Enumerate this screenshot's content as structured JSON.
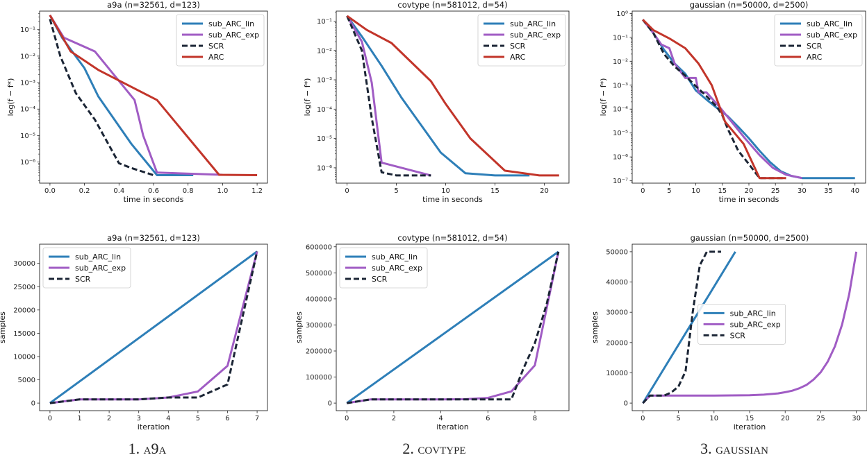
{
  "captions": [
    {
      "num": "1.",
      "name": "a9a"
    },
    {
      "num": "2.",
      "name": "covtype"
    },
    {
      "num": "3.",
      "name": "gaussian"
    }
  ],
  "colors": {
    "sub_ARC_lin": "#2e7fb8",
    "sub_ARC_exp": "#a05cc4",
    "SCR": "#1b2535",
    "ARC": "#c2352a"
  },
  "chart_data": [
    {
      "type": "line",
      "title": "a9a (n=32561, d=123)",
      "xlabel": "time in seconds",
      "ylabel": "log(f − f*)",
      "yscale": "log",
      "xlim": [
        -0.06,
        1.26
      ],
      "ylim": [
        1.6e-07,
        0.5
      ],
      "xticks": [
        0.0,
        0.2,
        0.4,
        0.6,
        0.8,
        1.0,
        1.2
      ],
      "xticklabels": [
        "0.0",
        "0.2",
        "0.4",
        "0.6",
        "0.8",
        "1.0",
        "1.2"
      ],
      "yticks": [
        1e-06,
        1e-05,
        0.0001,
        0.001,
        0.01,
        0.1
      ],
      "yticklabels": [
        "10⁻⁶",
        "10⁻⁵",
        "10⁻⁴",
        "10⁻³",
        "10⁻²",
        "10⁻¹"
      ],
      "legend": "top-right",
      "series": [
        {
          "name": "sub_ARC_lin",
          "style": "solid",
          "x": [
            0.0,
            0.07,
            0.2,
            0.28,
            0.47,
            0.62,
            0.83
          ],
          "y": [
            0.35,
            0.05,
            0.0035,
            0.0003,
            5e-06,
            3.2e-07,
            3.2e-07
          ]
        },
        {
          "name": "sub_ARC_exp",
          "style": "solid",
          "x": [
            0.0,
            0.08,
            0.26,
            0.49,
            0.54,
            0.62,
            1.0
          ],
          "y": [
            0.35,
            0.05,
            0.015,
            0.00022,
            1e-05,
            4e-07,
            3.3e-07
          ]
        },
        {
          "name": "SCR",
          "style": "dashed",
          "x": [
            0.0,
            0.06,
            0.15,
            0.26,
            0.4,
            0.47,
            0.6
          ],
          "y": [
            0.25,
            0.01,
            0.0004,
            4e-05,
            9e-07,
            6e-07,
            3.2e-07
          ]
        },
        {
          "name": "ARC",
          "style": "solid",
          "x": [
            0.0,
            0.12,
            0.28,
            0.62,
            0.98,
            1.2
          ],
          "y": [
            0.35,
            0.015,
            0.003,
            0.00022,
            3.3e-07,
            3.2e-07
          ]
        }
      ]
    },
    {
      "type": "line",
      "title": "covtype (n=581012, d=54)",
      "xlabel": "time in seconds",
      "ylabel": "log(f − f*)",
      "yscale": "log",
      "xlim": [
        -1.1,
        22.5
      ],
      "ylim": [
        3e-07,
        0.22
      ],
      "xticks": [
        0,
        5,
        10,
        15,
        20
      ],
      "xticklabels": [
        "0",
        "5",
        "10",
        "15",
        "20"
      ],
      "yticks": [
        1e-06,
        1e-05,
        0.0001,
        0.001,
        0.01,
        0.1
      ],
      "yticklabels": [
        "10⁻⁶",
        "10⁻⁵",
        "10⁻⁴",
        "10⁻³",
        "10⁻²",
        "10⁻¹"
      ],
      "legend": "top-right",
      "series": [
        {
          "name": "sub_ARC_lin",
          "style": "solid",
          "x": [
            0,
            1.5,
            3.5,
            5.5,
            9.5,
            12,
            15,
            18.5
          ],
          "y": [
            0.15,
            0.03,
            0.003,
            0.00025,
            3.3e-06,
            6.5e-07,
            5.5e-07,
            5.5e-07
          ]
        },
        {
          "name": "sub_ARC_exp",
          "style": "solid",
          "x": [
            0,
            1.5,
            2.5,
            3.5,
            8.5
          ],
          "y": [
            0.15,
            0.02,
            0.0008,
            1.5e-06,
            5.5e-07
          ]
        },
        {
          "name": "SCR",
          "style": "dashed",
          "x": [
            0,
            1.5,
            2.5,
            3.5,
            5,
            8.5
          ],
          "y": [
            0.15,
            0.01,
            5e-05,
            7e-07,
            5.5e-07,
            5.5e-07
          ]
        },
        {
          "name": "ARC",
          "style": "solid",
          "x": [
            0,
            2,
            4.5,
            8.5,
            10,
            12.5,
            16,
            19.5,
            21.5
          ],
          "y": [
            0.15,
            0.05,
            0.018,
            0.0009,
            0.00015,
            1e-05,
            8e-07,
            5.5e-07,
            5.5e-07
          ]
        }
      ]
    },
    {
      "type": "line",
      "title": "gaussian (n=50000, d=2500)",
      "xlabel": "time in seconds",
      "ylabel": "log(f − f*)",
      "yscale": "log",
      "xlim": [
        -2,
        42
      ],
      "ylim": [
        8e-08,
        1.25
      ],
      "xticks": [
        0,
        5,
        10,
        15,
        20,
        25,
        30,
        35,
        40
      ],
      "xticklabels": [
        "0",
        "5",
        "10",
        "15",
        "20",
        "25",
        "30",
        "35",
        "40"
      ],
      "yticks": [
        1e-07,
        1e-06,
        1e-05,
        0.0001,
        0.001,
        0.01,
        0.1,
        1
      ],
      "yticklabels": [
        "10⁻⁷",
        "10⁻⁶",
        "10⁻⁵",
        "10⁻⁴",
        "10⁻³",
        "10⁻²",
        "10⁻¹",
        "10⁰"
      ],
      "legend": "top-right",
      "series": [
        {
          "name": "sub_ARC_lin",
          "style": "solid",
          "x": [
            0,
            2,
            4,
            6,
            8,
            10,
            12,
            14,
            16,
            18,
            20,
            22,
            24,
            26,
            28,
            30,
            40
          ],
          "y": [
            0.55,
            0.15,
            0.03,
            0.008,
            0.003,
            0.0006,
            0.00025,
            0.00011,
            5e-05,
            1.8e-05,
            6e-06,
            1.8e-06,
            6e-07,
            2.5e-07,
            1.6e-07,
            1.3e-07,
            1.3e-07
          ]
        },
        {
          "name": "sub_ARC_exp",
          "style": "solid",
          "x": [
            0,
            2,
            3.5,
            5,
            6,
            8,
            10,
            10.5,
            12,
            14.5,
            17,
            19,
            22,
            24.5,
            27,
            30
          ],
          "y": [
            0.55,
            0.15,
            0.05,
            0.035,
            0.008,
            0.002,
            0.002,
            0.0005,
            0.0005,
            0.00012,
            2.5e-05,
            7e-06,
            1.2e-06,
            3.5e-07,
            1.8e-07,
            1.3e-07
          ]
        },
        {
          "name": "SCR",
          "style": "dashed",
          "x": [
            0,
            2,
            4,
            6,
            8,
            10,
            12,
            14,
            15,
            16,
            18,
            20,
            22,
            24,
            27
          ],
          "y": [
            0.55,
            0.15,
            0.02,
            0.006,
            0.0025,
            0.0009,
            0.00035,
            0.00012,
            5.5e-05,
            1.5e-05,
            1.8e-06,
            5e-07,
            1.3e-07,
            1.3e-07,
            1.3e-07
          ]
        },
        {
          "name": "ARC",
          "style": "solid",
          "x": [
            0,
            2,
            5,
            8,
            10.5,
            13,
            15.5,
            19,
            22,
            27
          ],
          "y": [
            0.55,
            0.2,
            0.09,
            0.035,
            0.008,
            0.001,
            3e-05,
            3.5e-06,
            1.3e-07,
            1.3e-07
          ]
        }
      ]
    },
    {
      "type": "line",
      "title": "a9a (n=32561, d=123)",
      "xlabel": "iteration",
      "ylabel": "samples",
      "xlim": [
        -0.35,
        7.35
      ],
      "ylim": [
        -1625,
        34125
      ],
      "xticks": [
        0,
        1,
        2,
        3,
        4,
        5,
        6,
        7
      ],
      "xticklabels": [
        "0",
        "1",
        "2",
        "3",
        "4",
        "5",
        "6",
        "7"
      ],
      "yticks": [
        0,
        5000,
        10000,
        15000,
        20000,
        25000,
        30000
      ],
      "yticklabels": [
        "0",
        "5000",
        "10000",
        "15000",
        "20000",
        "25000",
        "30000"
      ],
      "legend": "top-left",
      "series": [
        {
          "name": "sub_ARC_lin",
          "style": "solid",
          "x": [
            0,
            7
          ],
          "y": [
            0,
            32561
          ]
        },
        {
          "name": "sub_ARC_exp",
          "style": "solid",
          "x": [
            0,
            1,
            2,
            3,
            4,
            5,
            6,
            7
          ],
          "y": [
            0,
            800,
            800,
            800,
            1200,
            2500,
            8000,
            32561
          ]
        },
        {
          "name": "SCR",
          "style": "dashed",
          "x": [
            0,
            1,
            2,
            3,
            4,
            5,
            6,
            7
          ],
          "y": [
            0,
            800,
            800,
            800,
            1200,
            1200,
            4000,
            32561
          ]
        }
      ]
    },
    {
      "type": "line",
      "title": "covtype (n=581012, d=54)",
      "xlabel": "iteration",
      "ylabel": "samples",
      "xlim": [
        -0.45,
        9.45
      ],
      "ylim": [
        -29050,
        610050
      ],
      "xticks": [
        0,
        2,
        4,
        6,
        8
      ],
      "xticklabels": [
        "0",
        "2",
        "4",
        "6",
        "8"
      ],
      "yticks": [
        0,
        100000,
        200000,
        300000,
        400000,
        500000,
        600000
      ],
      "yticklabels": [
        "0",
        "100000",
        "200000",
        "300000",
        "400000",
        "500000",
        "600000"
      ],
      "legend": "top-left",
      "series": [
        {
          "name": "sub_ARC_lin",
          "style": "solid",
          "x": [
            0,
            9
          ],
          "y": [
            0,
            581012
          ]
        },
        {
          "name": "sub_ARC_exp",
          "style": "solid",
          "x": [
            0,
            1,
            2,
            3,
            4,
            5,
            6,
            7,
            8,
            9
          ],
          "y": [
            0,
            14000,
            14000,
            14000,
            14000,
            15000,
            20000,
            45000,
            145000,
            581012
          ]
        },
        {
          "name": "SCR",
          "style": "dashed",
          "x": [
            0,
            1,
            2,
            3,
            4,
            5,
            6,
            7,
            7.5,
            8,
            8.5,
            9
          ],
          "y": [
            0,
            14000,
            14000,
            14000,
            14000,
            14000,
            14000,
            14000,
            130000,
            230000,
            380000,
            581012
          ]
        }
      ]
    },
    {
      "type": "line",
      "title": "gaussian (n=50000, d=2500)",
      "xlabel": "iteration",
      "ylabel": "samples",
      "xlim": [
        -1.5,
        31.5
      ],
      "ylim": [
        -2500,
        52500
      ],
      "xticks": [
        0,
        5,
        10,
        15,
        20,
        25,
        30
      ],
      "xticklabels": [
        "0",
        "5",
        "10",
        "15",
        "20",
        "25",
        "30"
      ],
      "yticks": [
        0,
        10000,
        20000,
        30000,
        40000,
        50000
      ],
      "yticklabels": [
        "0",
        "10000",
        "20000",
        "30000",
        "40000",
        "50000"
      ],
      "legend": "center",
      "series": [
        {
          "name": "sub_ARC_lin",
          "style": "solid",
          "x": [
            0,
            13
          ],
          "y": [
            0,
            50000
          ]
        },
        {
          "name": "sub_ARC_exp",
          "style": "solid",
          "x": [
            0,
            1,
            5,
            10,
            15,
            17,
            19,
            20,
            21,
            22,
            23,
            24,
            25,
            26,
            27,
            28,
            29,
            30
          ],
          "y": [
            0,
            2500,
            2500,
            2500,
            2600,
            2800,
            3200,
            3600,
            4100,
            4900,
            6000,
            7800,
            10200,
            13800,
            18800,
            26000,
            36000,
            50000
          ]
        },
        {
          "name": "SCR",
          "style": "dashed",
          "x": [
            0,
            1,
            2,
            3,
            4,
            5,
            6,
            7,
            8,
            9,
            10,
            11
          ],
          "y": [
            0,
            2500,
            2500,
            2500,
            3500,
            5500,
            10500,
            30000,
            45500,
            50000,
            50000,
            50000
          ]
        }
      ]
    }
  ]
}
